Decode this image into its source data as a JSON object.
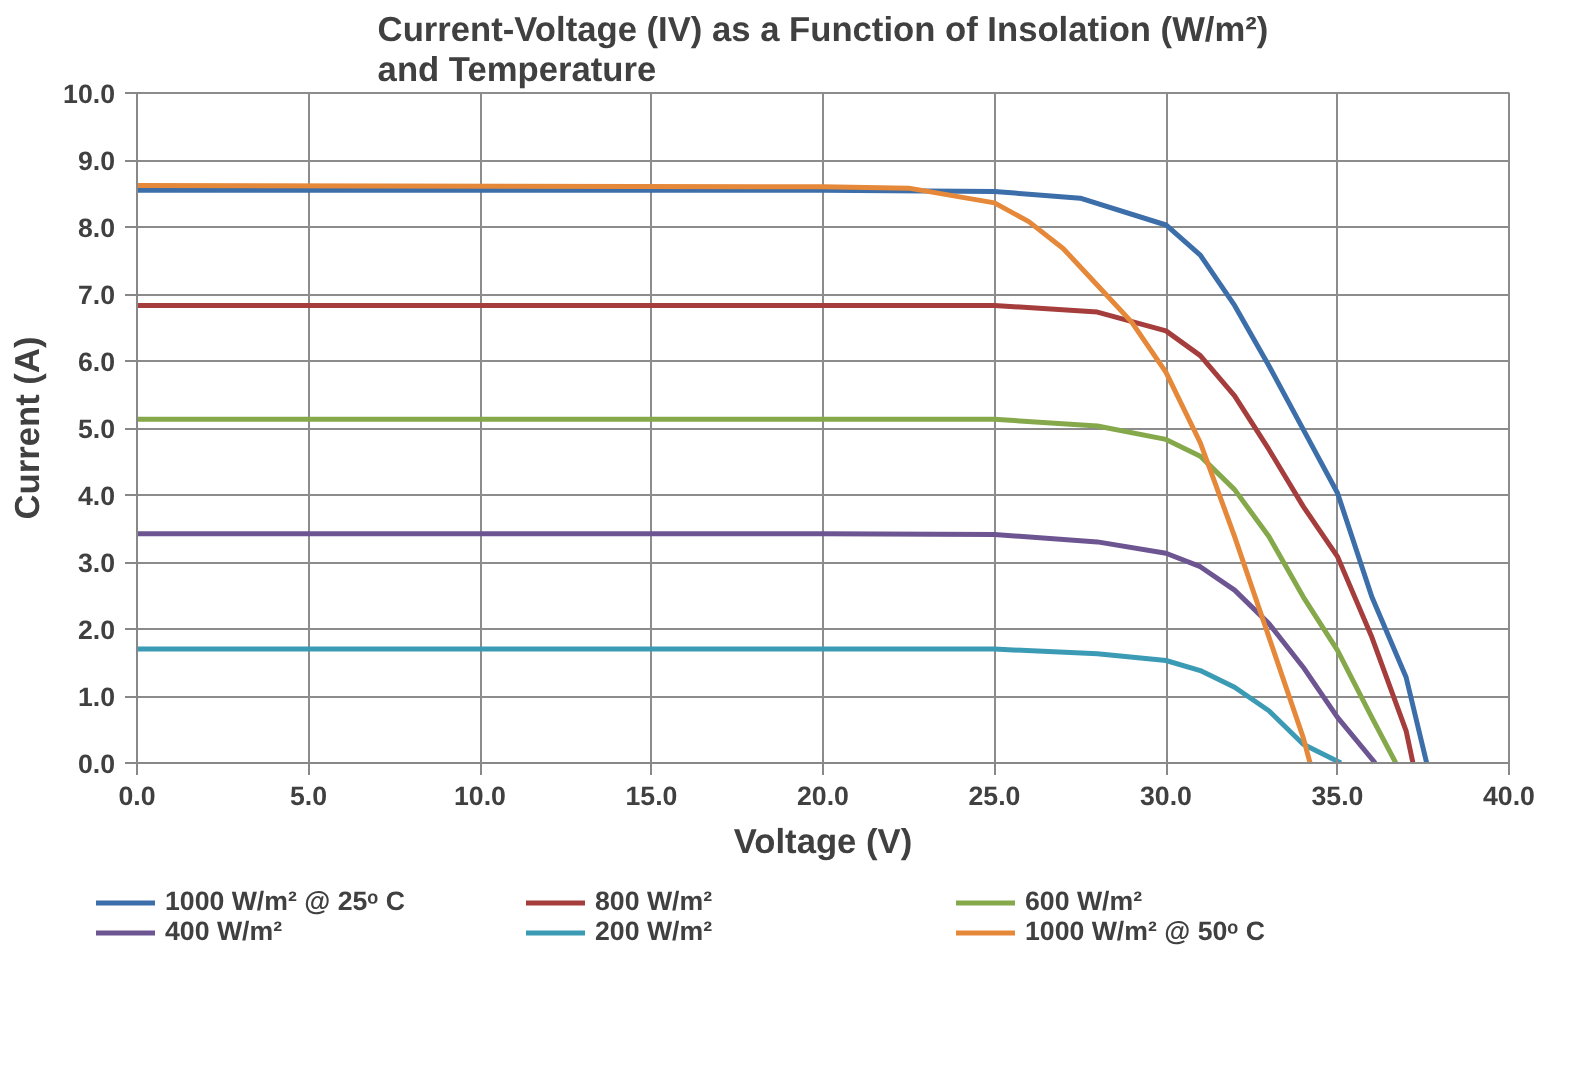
{
  "chart_data": {
    "type": "line",
    "title": "Current-Voltage (IV) as a Function of Insolation (W/m²)\nand Temperature",
    "xlabel": "Voltage (V)",
    "ylabel": "Current (A)",
    "xlim": [
      0,
      40
    ],
    "xticks": [
      {
        "value": 0,
        "label": "0.0"
      },
      {
        "value": 5,
        "label": "5.0"
      },
      {
        "value": 10,
        "label": "10.0"
      },
      {
        "value": 15,
        "label": "15.0"
      },
      {
        "value": 20,
        "label": "20.0"
      },
      {
        "value": 25,
        "label": "25.0"
      },
      {
        "value": 30,
        "label": "30.0"
      },
      {
        "value": 35,
        "label": "35.0"
      },
      {
        "value": 40,
        "label": "40.0"
      }
    ],
    "ylim": [
      0,
      10
    ],
    "yticks": [
      {
        "value": 0,
        "label": "0.0"
      },
      {
        "value": 1,
        "label": "1.0"
      },
      {
        "value": 2,
        "label": "2.0"
      },
      {
        "value": 3,
        "label": "3.0"
      },
      {
        "value": 4,
        "label": "4.0"
      },
      {
        "value": 5,
        "label": "5.0"
      },
      {
        "value": 6,
        "label": "6.0"
      },
      {
        "value": 7,
        "label": "7.0"
      },
      {
        "value": 8,
        "label": "8.0"
      },
      {
        "value": 9,
        "label": "9.0"
      },
      {
        "value": 10,
        "label": "10.0"
      }
    ],
    "grid": true,
    "legend": "bottom",
    "marker": "none",
    "line_style": "solid",
    "series": [
      {
        "name": "1000 W/m² @ 25ᵒ C",
        "color": "#3c6ea9",
        "x": [
          0,
          20,
          25,
          27.5,
          30,
          31,
          32,
          33,
          34,
          35,
          36,
          37,
          37.6
        ],
        "values": [
          8.55,
          8.55,
          8.53,
          8.43,
          8.03,
          7.58,
          6.83,
          5.93,
          4.98,
          4.03,
          2.48,
          1.28,
          0
        ]
      },
      {
        "name": "800 W/m²",
        "color": "#a63d3d",
        "x": [
          0,
          20,
          25,
          28,
          30,
          31,
          32,
          33,
          34,
          35,
          36,
          37,
          37.2
        ],
        "values": [
          6.83,
          6.83,
          6.83,
          6.73,
          6.45,
          6.08,
          5.48,
          4.68,
          3.83,
          3.08,
          1.88,
          0.48,
          0
        ]
      },
      {
        "name": "600 W/m²",
        "color": "#85a84a",
        "x": [
          0,
          20,
          25,
          28,
          30,
          31,
          32,
          33,
          34,
          35,
          36,
          36.7
        ],
        "values": [
          5.13,
          5.13,
          5.13,
          5.03,
          4.83,
          4.58,
          4.08,
          3.38,
          2.48,
          1.68,
          0.68,
          0
        ]
      },
      {
        "name": "400 W/m²",
        "color": "#6d5592",
        "x": [
          0,
          20,
          25,
          28,
          30,
          31,
          32,
          33,
          34,
          35,
          36.1
        ],
        "values": [
          3.42,
          3.42,
          3.41,
          3.3,
          3.13,
          2.93,
          2.58,
          2.08,
          1.43,
          0.68,
          0
        ]
      },
      {
        "name": "200 W/m²",
        "color": "#3b9bb5",
        "x": [
          0,
          20,
          25,
          28,
          30,
          31,
          32,
          33,
          34,
          35.1
        ],
        "values": [
          1.7,
          1.7,
          1.7,
          1.63,
          1.53,
          1.38,
          1.13,
          0.78,
          0.28,
          0
        ]
      },
      {
        "name": "1000 W/m² @ 50ᵒ C",
        "color": "#e5883a",
        "x": [
          0,
          20,
          22.5,
          25,
          26,
          27,
          28,
          29,
          30,
          31,
          32,
          33,
          34,
          34.2
        ],
        "values": [
          8.62,
          8.6,
          8.58,
          8.36,
          8.08,
          7.68,
          7.13,
          6.58,
          5.83,
          4.78,
          3.38,
          1.88,
          0.38,
          0
        ]
      }
    ]
  }
}
